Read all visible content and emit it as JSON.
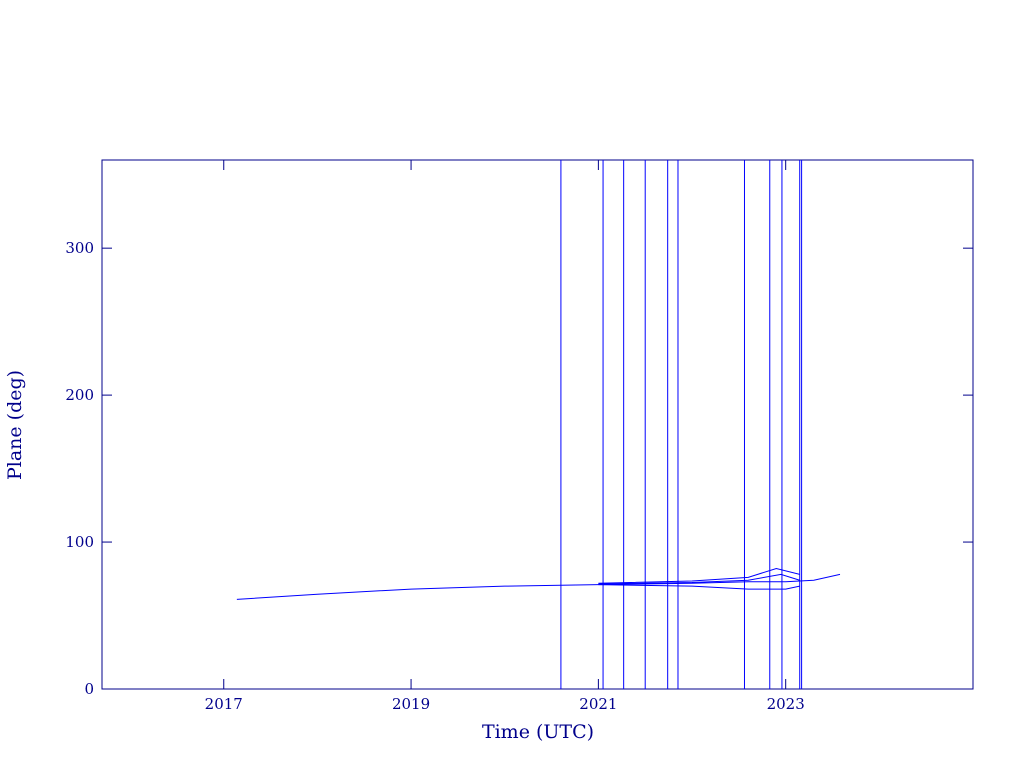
{
  "chart_data": {
    "type": "line",
    "x_label": "Time (UTC)",
    "y_label": "Plane (deg)",
    "xlim": [
      2015.7,
      2025.0
    ],
    "xticks": [
      2017,
      2019,
      2021,
      2023
    ],
    "ylim": [
      0,
      360
    ],
    "yticks": [
      0,
      100,
      200,
      300
    ],
    "axis_color": "#00008b",
    "series": [
      {
        "color": "#0000ff",
        "x": [
          2017.14,
          2018.0,
          2019.0,
          2020.0,
          2021.0,
          2022.0,
          2022.6,
          2023.0,
          2023.3,
          2023.58
        ],
        "values": [
          61,
          64.5,
          68,
          70,
          71,
          72,
          73,
          73,
          74,
          78
        ]
      },
      {
        "color": "#0000ff",
        "x": [
          2021.0,
          2022.0,
          2022.6,
          2023.0,
          2023.15
        ],
        "values": [
          71,
          70,
          68,
          68,
          70
        ]
      },
      {
        "color": "#0000ff",
        "x": [
          2021.0,
          2022.0,
          2022.6,
          2022.9,
          2023.15
        ],
        "values": [
          72,
          73.5,
          76,
          82,
          78
        ]
      },
      {
        "color": "#0000ff",
        "x": [
          2021.0,
          2022.0,
          2022.6,
          2022.95,
          2023.15
        ],
        "values": [
          71.5,
          72.5,
          74,
          78,
          74
        ]
      },
      {
        "color": "#0000ff",
        "x": [
          2020.6,
          2020.6
        ],
        "values": [
          0,
          360
        ]
      },
      {
        "color": "#0000ff",
        "x": [
          2021.05,
          2021.05
        ],
        "values": [
          0,
          360
        ]
      },
      {
        "color": "#0000ff",
        "x": [
          2021.27,
          2021.27
        ],
        "values": [
          0,
          360
        ]
      },
      {
        "color": "#0000ff",
        "x": [
          2021.5,
          2021.5
        ],
        "values": [
          0,
          360
        ]
      },
      {
        "color": "#0000ff",
        "x": [
          2021.74,
          2021.74
        ],
        "values": [
          0,
          360
        ]
      },
      {
        "color": "#0000ff",
        "x": [
          2021.85,
          2021.85
        ],
        "values": [
          0,
          360
        ]
      },
      {
        "color": "#0000ff",
        "x": [
          2022.56,
          2022.56
        ],
        "values": [
          0,
          360
        ]
      },
      {
        "color": "#0000ff",
        "x": [
          2022.83,
          2022.83
        ],
        "values": [
          0,
          360
        ]
      },
      {
        "color": "#0000ff",
        "x": [
          2022.96,
          2022.96
        ],
        "values": [
          0,
          360
        ]
      },
      {
        "color": "#0000ff",
        "x": [
          2023.15,
          2023.15
        ],
        "values": [
          0,
          360
        ]
      },
      {
        "color": "#0000ff",
        "x": [
          2023.17,
          2023.17
        ],
        "values": [
          0,
          360
        ]
      }
    ]
  }
}
